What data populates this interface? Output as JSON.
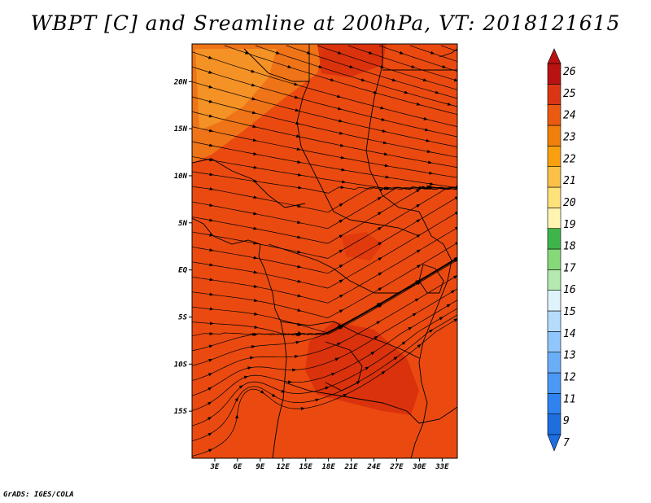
{
  "title": "WBPT [C] and Sreamline at 200hPa, VT: 2018121615",
  "credit": "GrADS: IGES/COLA",
  "map": {
    "lon_range": [
      0,
      35
    ],
    "lat_range": [
      -20,
      24
    ],
    "lon_ticks": [
      "3E",
      "6E",
      "9E",
      "12E",
      "15E",
      "18E",
      "21E",
      "24E",
      "27E",
      "30E",
      "33E"
    ],
    "lat_ticks": [
      "20N",
      "15N",
      "10N",
      "5N",
      "EQ",
      "5S",
      "10S",
      "15S"
    ],
    "fill_colors": {
      "base": "#ea4a10",
      "warmer": "#d8300c",
      "cooler": "#f07818",
      "coolest": "#f59828"
    }
  },
  "colorbar": {
    "labels": [
      "7",
      "9",
      "11",
      "12",
      "13",
      "14",
      "15",
      "16",
      "17",
      "18",
      "19",
      "20",
      "21",
      "22",
      "23",
      "24",
      "25",
      "26"
    ],
    "colors": [
      "#1e6ee0",
      "#2f82f0",
      "#4c98f5",
      "#6aaef8",
      "#90c6fb",
      "#b6dcfd",
      "#dff3fc",
      "#b4eab0",
      "#86d879",
      "#3eb54a",
      "#fff5b0",
      "#fde27a",
      "#fbc048",
      "#f8a010",
      "#f07f0c",
      "#ea5a10",
      "#da3514",
      "#b81212"
    ]
  }
}
